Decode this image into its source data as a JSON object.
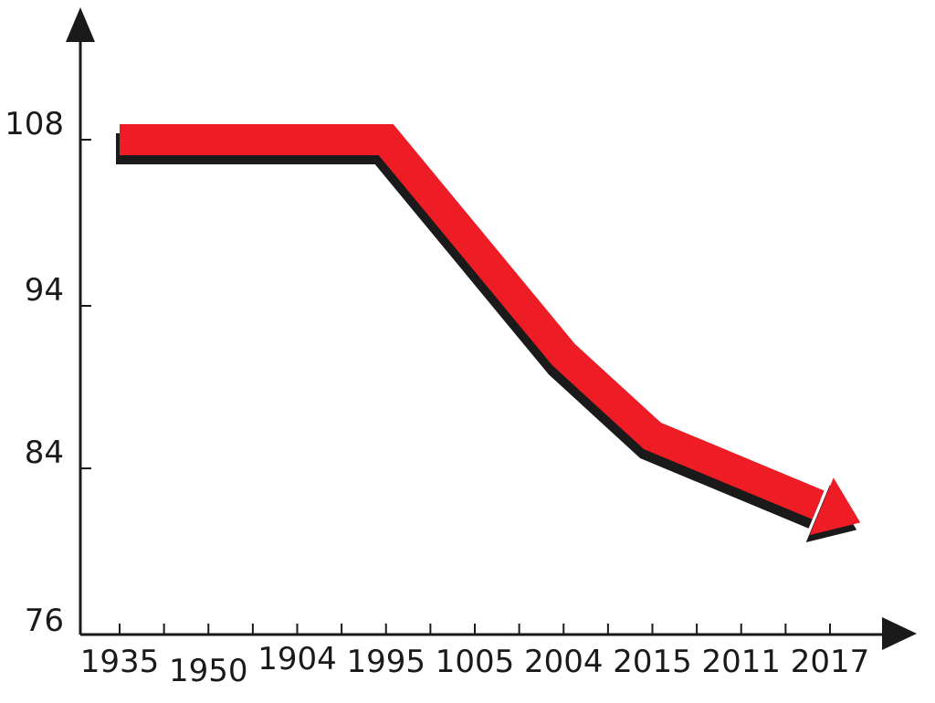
{
  "chart_data": {
    "type": "line",
    "title": "",
    "xlabel": "",
    "ylabel": "",
    "x_tick_labels": [
      "1935",
      "1950",
      "1904",
      "1995",
      "1005",
      "2004",
      "2015",
      "2011",
      "2017"
    ],
    "y_tick_labels": [
      "108",
      "94",
      "84",
      "76"
    ],
    "y_ticks": [
      108,
      94,
      84,
      76
    ],
    "ylim": [
      76,
      108
    ],
    "series": [
      {
        "x": [
          "1935",
          "1995",
          "2004",
          "2015",
          "2017"
        ],
        "values": [
          108,
          108,
          91,
          86,
          82
        ]
      }
    ],
    "grid": false,
    "legend": "none",
    "line_color": "#ee1c24",
    "shadow_color": "#1a1a1a"
  }
}
